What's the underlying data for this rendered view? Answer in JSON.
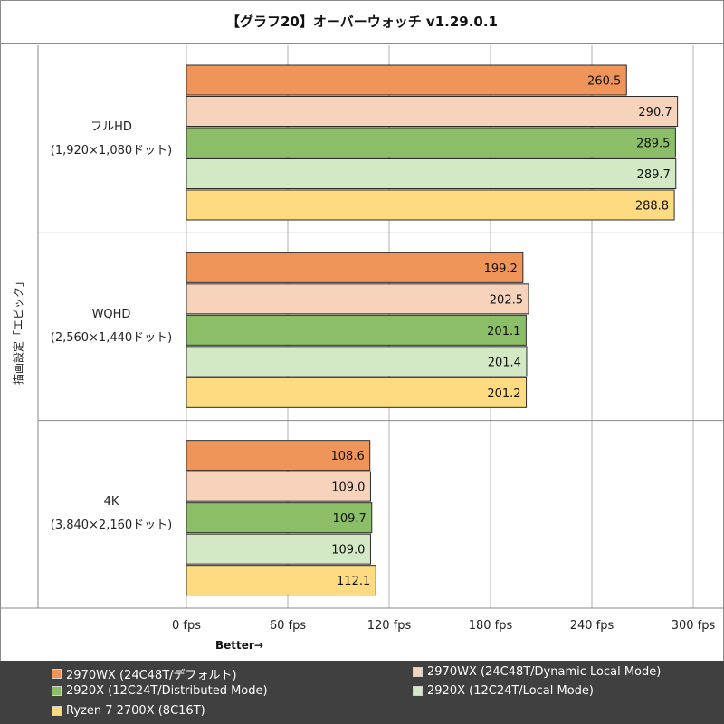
{
  "chart_data": {
    "type": "bar",
    "orientation": "horizontal",
    "title": "【グラフ20】オーバーウォッチ v1.29.0.1",
    "ylabel": "描画設定「エピック」",
    "xlabel": "Better→",
    "x_range": [
      0,
      300
    ],
    "x_ticks": [
      "0 fps",
      "60 fps",
      "120 fps",
      "180 fps",
      "240 fps",
      "300 fps"
    ],
    "x_tick_values": [
      0,
      60,
      120,
      180,
      240,
      300
    ],
    "grid": true,
    "legend_position": "bottom",
    "categories": [
      {
        "name": "フルHD",
        "detail": "(1,920×1,080ドット)"
      },
      {
        "name": "WQHD",
        "detail": "(2,560×1,440ドット)"
      },
      {
        "name": "4K",
        "detail": "(3,840×2,160ドット)"
      }
    ],
    "series": [
      {
        "name": "2970WX (24C48T/デフォルト)",
        "color": "#f0955a",
        "values": [
          260.5,
          199.2,
          108.6
        ]
      },
      {
        "name": "2970WX (24C48T/Dynamic Local Mode)",
        "color": "#f8d3bc",
        "values": [
          290.7,
          202.5,
          109.0
        ]
      },
      {
        "name": "2920X (12C24T/Distributed Mode)",
        "color": "#8bbe67",
        "values": [
          289.5,
          201.1,
          109.7
        ]
      },
      {
        "name": "2920X (12C24T/Local Mode)",
        "color": "#d3e9c6",
        "values": [
          289.7,
          201.4,
          109.0
        ]
      },
      {
        "name": "Ryzen 7 2700X (8C16T)",
        "color": "#fedb80",
        "values": [
          288.8,
          201.2,
          112.1
        ]
      }
    ]
  }
}
